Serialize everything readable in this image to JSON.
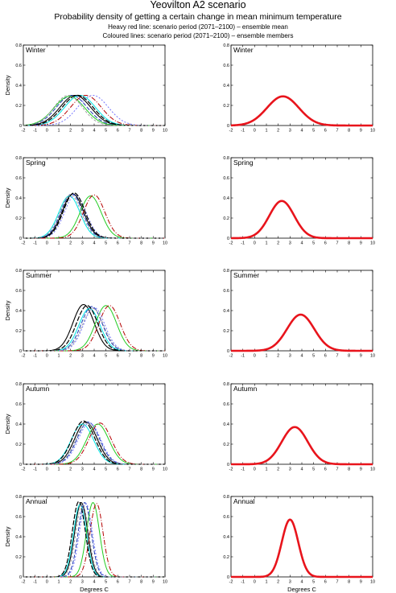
{
  "title": "Yeovilton A2 scenario",
  "subtitle": "Probability density of getting a certain change in mean minimum temperature",
  "legend_notes": [
    "Heavy red line: scenario period (2071–2100) – ensemble mean",
    "Coloured lines: scenario period (2071–2100) – ensemble members"
  ],
  "colors": {
    "ensemble_mean": "#e8141c",
    "members": [
      "#000000",
      "#1e3cb4",
      "#00e6e6",
      "#22cc22",
      "#b40000",
      "#7878ff",
      "#000000",
      "#9a9a9a"
    ]
  },
  "chart_data": [
    {
      "type": "line",
      "panel": "Winter ensemble members",
      "season": "Winter",
      "ylabel": "Density",
      "xlabel": "",
      "xlim": [
        -2,
        10
      ],
      "ylim": [
        0,
        0.8
      ],
      "xticks": [
        -2,
        -1,
        0,
        1,
        2,
        3,
        4,
        5,
        6,
        7,
        8,
        9,
        10
      ],
      "yticks": [
        0,
        0.2,
        0.4,
        0.6,
        0.8
      ],
      "series": [
        {
          "mean": 2.4,
          "sd": 1.3,
          "peak": 0.3
        },
        {
          "mean": 2.1,
          "sd": 1.3,
          "peak": 0.3
        },
        {
          "mean": 2.8,
          "sd": 1.3,
          "peak": 0.3
        },
        {
          "mean": 1.9,
          "sd": 1.3,
          "peak": 0.29
        },
        {
          "mean": 3.3,
          "sd": 1.3,
          "peak": 0.3
        },
        {
          "mean": 3.9,
          "sd": 1.3,
          "peak": 0.3
        },
        {
          "mean": 2.6,
          "sd": 1.3,
          "peak": 0.3
        },
        {
          "mean": 1.8,
          "sd": 1.2,
          "peak": 0.3
        }
      ]
    },
    {
      "type": "line",
      "panel": "Winter ensemble mean",
      "season": "Winter",
      "ylabel": "",
      "xlabel": "",
      "xlim": [
        -2,
        10
      ],
      "ylim": [
        0,
        0.8
      ],
      "xticks": [
        -2,
        -1,
        0,
        1,
        2,
        3,
        4,
        5,
        6,
        7,
        8,
        9,
        10
      ],
      "yticks": [
        0,
        0.2,
        0.4,
        0.6,
        0.8
      ],
      "series": [
        {
          "mean": 2.4,
          "sd": 1.35,
          "peak": 0.29
        }
      ]
    },
    {
      "type": "line",
      "panel": "Spring ensemble members",
      "season": "Spring",
      "ylabel": "Density",
      "xlabel": "",
      "xlim": [
        -2,
        10
      ],
      "ylim": [
        0,
        0.8
      ],
      "xticks": [
        -2,
        -1,
        0,
        1,
        2,
        3,
        4,
        5,
        6,
        7,
        8,
        9,
        10
      ],
      "yticks": [
        0,
        0.2,
        0.4,
        0.6,
        0.8
      ],
      "series": [
        {
          "mean": 2.2,
          "sd": 0.9,
          "peak": 0.44
        },
        {
          "mean": 2.1,
          "sd": 0.9,
          "peak": 0.44
        },
        {
          "mean": 1.9,
          "sd": 0.9,
          "peak": 0.42
        },
        {
          "mean": 3.7,
          "sd": 0.9,
          "peak": 0.42
        },
        {
          "mean": 4.0,
          "sd": 0.9,
          "peak": 0.43
        },
        {
          "mean": 2.4,
          "sd": 0.9,
          "peak": 0.43
        },
        {
          "mean": 2.3,
          "sd": 0.9,
          "peak": 0.45
        },
        {
          "mean": 2.0,
          "sd": 0.9,
          "peak": 0.43
        }
      ]
    },
    {
      "type": "line",
      "panel": "Spring ensemble mean",
      "season": "Spring",
      "ylabel": "",
      "xlabel": "",
      "xlim": [
        -2,
        10
      ],
      "ylim": [
        0,
        0.8
      ],
      "xticks": [
        -2,
        -1,
        0,
        1,
        2,
        3,
        4,
        5,
        6,
        7,
        8,
        9,
        10
      ],
      "yticks": [
        0,
        0.2,
        0.4,
        0.6,
        0.8
      ],
      "series": [
        {
          "mean": 2.3,
          "sd": 1.05,
          "peak": 0.37
        }
      ]
    },
    {
      "type": "line",
      "panel": "Summer ensemble members",
      "season": "Summer",
      "ylabel": "Density",
      "xlabel": "",
      "xlim": [
        -2,
        10
      ],
      "ylim": [
        0,
        0.8
      ],
      "xticks": [
        -2,
        -1,
        0,
        1,
        2,
        3,
        4,
        5,
        6,
        7,
        8,
        9,
        10
      ],
      "yticks": [
        0,
        0.2,
        0.4,
        0.6,
        0.8
      ],
      "series": [
        {
          "mean": 3.1,
          "sd": 0.9,
          "peak": 0.46
        },
        {
          "mean": 3.8,
          "sd": 0.9,
          "peak": 0.44
        },
        {
          "mean": 3.6,
          "sd": 0.9,
          "peak": 0.42
        },
        {
          "mean": 5.0,
          "sd": 0.9,
          "peak": 0.45
        },
        {
          "mean": 5.3,
          "sd": 0.9,
          "peak": 0.45
        },
        {
          "mean": 4.0,
          "sd": 0.9,
          "peak": 0.43
        },
        {
          "mean": 3.4,
          "sd": 0.9,
          "peak": 0.45
        },
        {
          "mean": 3.9,
          "sd": 0.9,
          "peak": 0.42
        }
      ]
    },
    {
      "type": "line",
      "panel": "Summer ensemble mean",
      "season": "Summer",
      "ylabel": "",
      "xlabel": "",
      "xlim": [
        -2,
        10
      ],
      "ylim": [
        0,
        0.8
      ],
      "xticks": [
        -2,
        -1,
        0,
        1,
        2,
        3,
        4,
        5,
        6,
        7,
        8,
        9,
        10
      ],
      "yticks": [
        0,
        0.2,
        0.4,
        0.6,
        0.8
      ],
      "series": [
        {
          "mean": 3.9,
          "sd": 1.15,
          "peak": 0.36
        }
      ]
    },
    {
      "type": "line",
      "panel": "Autumn ensemble members",
      "season": "Autumn",
      "ylabel": "Density",
      "xlabel": "",
      "xlim": [
        -2,
        10
      ],
      "ylim": [
        0,
        0.8
      ],
      "xticks": [
        -2,
        -1,
        0,
        1,
        2,
        3,
        4,
        5,
        6,
        7,
        8,
        9,
        10
      ],
      "yticks": [
        0,
        0.2,
        0.4,
        0.6,
        0.8
      ],
      "series": [
        {
          "mean": 3.3,
          "sd": 0.95,
          "peak": 0.42
        },
        {
          "mean": 3.5,
          "sd": 0.95,
          "peak": 0.42
        },
        {
          "mean": 3.0,
          "sd": 0.95,
          "peak": 0.4
        },
        {
          "mean": 4.3,
          "sd": 0.95,
          "peak": 0.4
        },
        {
          "mean": 4.5,
          "sd": 0.95,
          "peak": 0.41
        },
        {
          "mean": 3.6,
          "sd": 0.95,
          "peak": 0.41
        },
        {
          "mean": 3.1,
          "sd": 0.95,
          "peak": 0.43
        },
        {
          "mean": 3.4,
          "sd": 0.95,
          "peak": 0.41
        }
      ]
    },
    {
      "type": "line",
      "panel": "Autumn ensemble mean",
      "season": "Autumn",
      "ylabel": "",
      "xlabel": "",
      "xlim": [
        -2,
        10
      ],
      "ylim": [
        0,
        0.8
      ],
      "xticks": [
        -2,
        -1,
        0,
        1,
        2,
        3,
        4,
        5,
        6,
        7,
        8,
        9,
        10
      ],
      "yticks": [
        0,
        0.2,
        0.4,
        0.6,
        0.8
      ],
      "series": [
        {
          "mean": 3.4,
          "sd": 1.1,
          "peak": 0.37
        }
      ]
    },
    {
      "type": "line",
      "panel": "Annual ensemble members",
      "season": "Annual",
      "ylabel": "Density",
      "xlabel": "Degrees C",
      "xlim": [
        -2,
        10
      ],
      "ylim": [
        0,
        0.8
      ],
      "xticks": [
        -2,
        -1,
        0,
        1,
        2,
        3,
        4,
        5,
        6,
        7,
        8,
        9,
        10
      ],
      "yticks": [
        0,
        0.2,
        0.4,
        0.6,
        0.8
      ],
      "series": [
        {
          "mean": 2.9,
          "sd": 0.55,
          "peak": 0.74
        },
        {
          "mean": 3.2,
          "sd": 0.55,
          "peak": 0.74
        },
        {
          "mean": 2.8,
          "sd": 0.55,
          "peak": 0.72
        },
        {
          "mean": 3.9,
          "sd": 0.55,
          "peak": 0.74
        },
        {
          "mean": 4.2,
          "sd": 0.55,
          "peak": 0.73
        },
        {
          "mean": 3.3,
          "sd": 0.55,
          "peak": 0.73
        },
        {
          "mean": 2.7,
          "sd": 0.55,
          "peak": 0.75
        },
        {
          "mean": 3.0,
          "sd": 0.55,
          "peak": 0.72
        }
      ]
    },
    {
      "type": "line",
      "panel": "Annual ensemble mean",
      "season": "Annual",
      "ylabel": "",
      "xlabel": "Degrees C",
      "xlim": [
        -2,
        10
      ],
      "ylim": [
        0,
        0.8
      ],
      "xticks": [
        -2,
        -1,
        0,
        1,
        2,
        3,
        4,
        5,
        6,
        7,
        8,
        9,
        10
      ],
      "yticks": [
        0,
        0.2,
        0.4,
        0.6,
        0.8
      ],
      "series": [
        {
          "mean": 3.0,
          "sd": 0.7,
          "peak": 0.57
        }
      ]
    }
  ]
}
